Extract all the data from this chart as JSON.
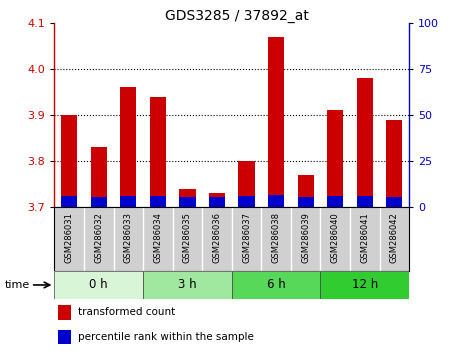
{
  "title": "GDS3285 / 37892_at",
  "samples": [
    "GSM286031",
    "GSM286032",
    "GSM286033",
    "GSM286034",
    "GSM286035",
    "GSM286036",
    "GSM286037",
    "GSM286038",
    "GSM286039",
    "GSM286040",
    "GSM286041",
    "GSM286042"
  ],
  "red_values": [
    3.9,
    3.83,
    3.96,
    3.94,
    3.74,
    3.73,
    3.8,
    4.07,
    3.77,
    3.91,
    3.98,
    3.89
  ],
  "blue_values": [
    3.724,
    3.722,
    3.724,
    3.724,
    3.722,
    3.722,
    3.724,
    3.726,
    3.722,
    3.724,
    3.724,
    3.722
  ],
  "ymin": 3.7,
  "ymax": 4.1,
  "y2min": 0,
  "y2max": 100,
  "yticks": [
    3.7,
    3.8,
    3.9,
    4.0,
    4.1
  ],
  "y2ticks": [
    0,
    25,
    50,
    75,
    100
  ],
  "groups": [
    {
      "label": "0 h",
      "start": 0,
      "end": 3,
      "color": "#d8f5d8"
    },
    {
      "label": "3 h",
      "start": 3,
      "end": 6,
      "color": "#a0e8a0"
    },
    {
      "label": "6 h",
      "start": 6,
      "end": 9,
      "color": "#58d858"
    },
    {
      "label": "12 h",
      "start": 9,
      "end": 12,
      "color": "#30cc30"
    }
  ],
  "red_color": "#cc0000",
  "blue_color": "#0000cc",
  "bar_width": 0.55,
  "sample_bg": "#d0d0d0",
  "legend_red": "transformed count",
  "legend_blue": "percentile rank within the sample",
  "xlabel": "time"
}
